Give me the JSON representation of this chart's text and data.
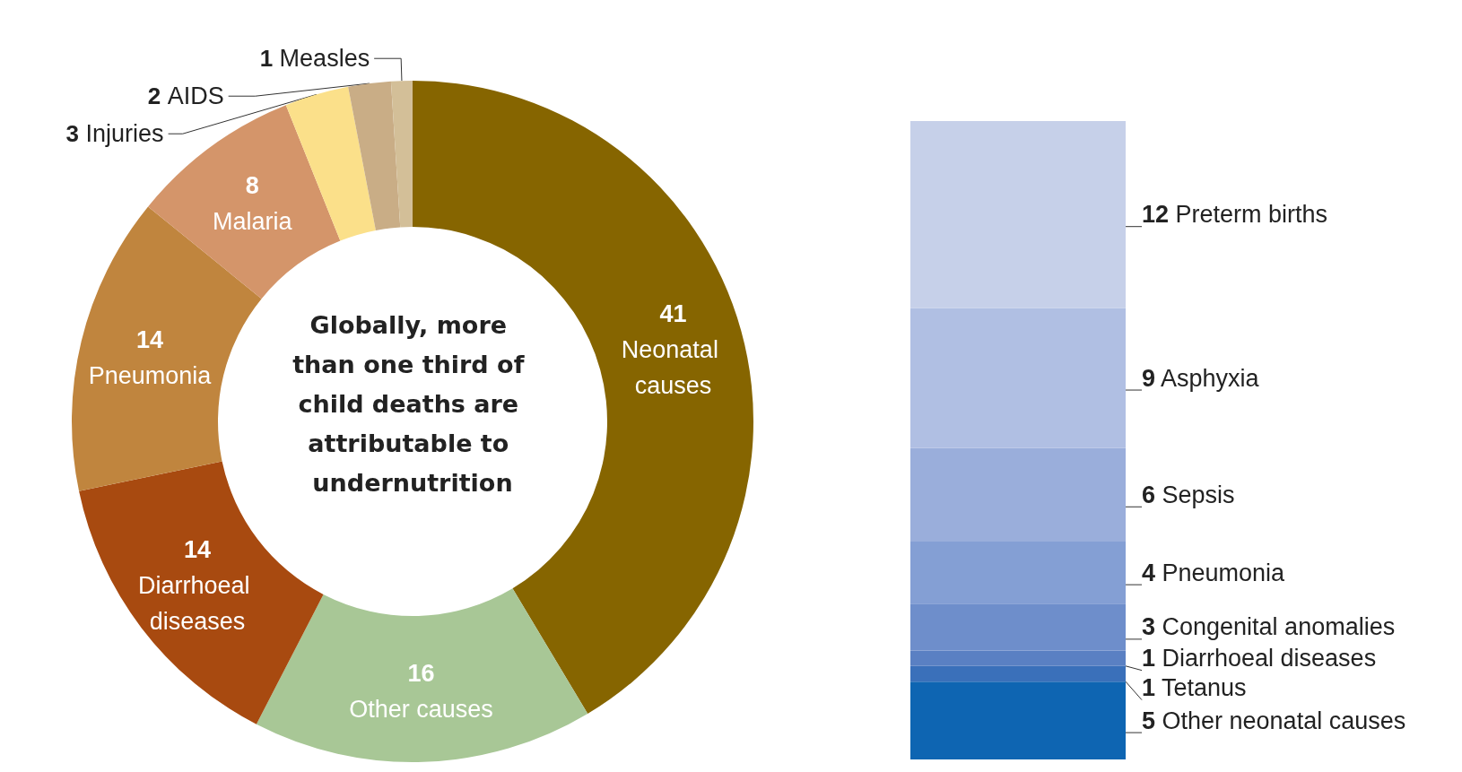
{
  "chart_data": [
    {
      "type": "donut",
      "categories": [
        "Neonatal causes",
        "Other causes",
        "Diarrhoeal diseases",
        "Pneumonia",
        "Malaria",
        "Injuries",
        "AIDS",
        "Measles"
      ],
      "values": [
        41,
        16,
        14,
        14,
        8,
        3,
        2,
        1
      ],
      "colors": [
        "#866500",
        "#a8c796",
        "#a84a10",
        "#c0853e",
        "#d4956a",
        "#fbe08a",
        "#c9ad86",
        "#d3bf98"
      ],
      "data_labels": true,
      "annotations": [
        "Globally, more than one third of child deaths are attributable to undernutrition"
      ]
    },
    {
      "type": "bar",
      "stacked": true,
      "categories": [
        null
      ],
      "data_labels": true,
      "series": [
        {
          "name": "Other neonatal causes",
          "color": "#0e65b2",
          "values": [
            5
          ]
        },
        {
          "name": "Tetanus",
          "color": "#3a70ba",
          "values": [
            1
          ]
        },
        {
          "name": "Diarrhoeal diseases",
          "color": "#5a80c3",
          "values": [
            1
          ]
        },
        {
          "name": "Congenital anomalies",
          "color": "#6e8ecb",
          "values": [
            3
          ]
        },
        {
          "name": "Pneumonia",
          "color": "#849fd4",
          "values": [
            4
          ]
        },
        {
          "name": "Sepsis",
          "color": "#9aaedb",
          "values": [
            6
          ]
        },
        {
          "name": "Asphyxia",
          "color": "#b0bfe3",
          "values": [
            9
          ]
        },
        {
          "name": "Preterm births",
          "color": "#c6d0e9",
          "values": [
            12
          ]
        }
      ]
    }
  ]
}
